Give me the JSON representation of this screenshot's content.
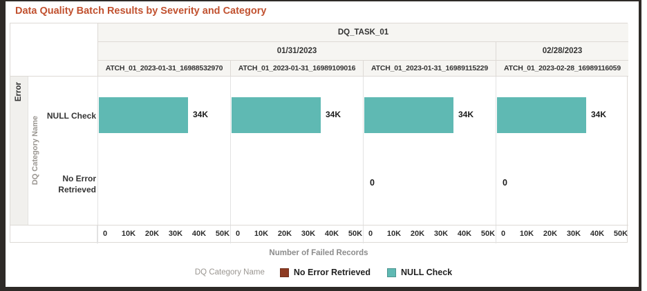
{
  "title": "Data Quality Batch Results by Severity and Category",
  "severity_group": "Error",
  "colors": {
    "title": "#c1512f",
    "bar_teal": "#5fb9b3",
    "no_error_brown": "#8e3b22",
    "frame_dark": "#2e2a27",
    "header_bg": "#f6f5f2"
  },
  "chart_data": {
    "type": "bar",
    "orientation": "horizontal",
    "title": "Data Quality Batch Results by Severity and Category",
    "facet_column": "DQ_TASK_01",
    "severity_group": "Error",
    "ylabel": "DQ Category Name",
    "xlabel": "Number of Failed Records",
    "categories": [
      "NULL Check",
      "No Error Retrieved"
    ],
    "x_ticks": [
      "0",
      "10K",
      "20K",
      "30K",
      "40K",
      "50K"
    ],
    "xlim": [
      0,
      50000
    ],
    "grid": false,
    "date_groups": [
      {
        "label": "01/31/2023",
        "span": 3
      },
      {
        "label": "02/28/2023",
        "span": 1
      }
    ],
    "panels": [
      {
        "batch_label": "ATCH_01_2023-01-31_16988532970",
        "date": "01/31/2023",
        "series": [
          {
            "category": "NULL Check",
            "value": 34000,
            "label": "34K"
          },
          {
            "category": "No Error Retrieved",
            "value": null,
            "label": null
          }
        ]
      },
      {
        "batch_label": "ATCH_01_2023-01-31_16989109016",
        "date": "01/31/2023",
        "series": [
          {
            "category": "NULL Check",
            "value": 34000,
            "label": "34K"
          },
          {
            "category": "No Error Retrieved",
            "value": null,
            "label": null
          }
        ]
      },
      {
        "batch_label": "ATCH_01_2023-01-31_16989115229",
        "date": "01/31/2023",
        "series": [
          {
            "category": "NULL Check",
            "value": 34000,
            "label": "34K"
          },
          {
            "category": "No Error Retrieved",
            "value": 0,
            "label": "0"
          }
        ]
      },
      {
        "batch_label": "ATCH_01_2023-02-28_16989116059",
        "date": "02/28/2023",
        "series": [
          {
            "category": "NULL Check",
            "value": 34000,
            "label": "34K"
          },
          {
            "category": "No Error Retrieved",
            "value": 0,
            "label": "0"
          }
        ]
      }
    ],
    "legend": {
      "title": "DQ Category Name",
      "items": [
        {
          "label": "No Error Retrieved",
          "color": "#8e3b22"
        },
        {
          "label": "NULL Check",
          "color": "#5fb9b3"
        }
      ]
    }
  }
}
